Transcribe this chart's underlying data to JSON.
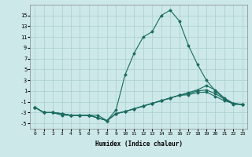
{
  "xlabel": "Humidex (Indice chaleur)",
  "ylabel": "",
  "bg_color": "#cce8e8",
  "line_color": "#1a6b60",
  "grid_color": "#aacfcf",
  "x_values": [
    0,
    1,
    2,
    3,
    4,
    5,
    6,
    7,
    8,
    9,
    10,
    11,
    12,
    13,
    14,
    15,
    16,
    17,
    18,
    19,
    20,
    21,
    22,
    23
  ],
  "series": [
    [
      -2,
      -3,
      -3,
      -3.5,
      -3.5,
      -3.5,
      -3.5,
      -3.5,
      -4.5,
      -2.5,
      4,
      8,
      11,
      12,
      15,
      16,
      14,
      9.5,
      6,
      3,
      1,
      -0.5,
      -1.5,
      -1.5
    ],
    [
      -2,
      -3,
      -3,
      -3.2,
      -3.5,
      -3.5,
      -3.5,
      -4,
      -4.5,
      -3.2,
      -2.8,
      -2.3,
      -1.8,
      -1.3,
      -0.8,
      -0.3,
      0.2,
      0.7,
      1.2,
      2.0,
      1.2,
      -0.3,
      -1.3,
      -1.5
    ],
    [
      -2,
      -3,
      -3,
      -3.2,
      -3.5,
      -3.5,
      -3.5,
      -4,
      -4.5,
      -3.2,
      -2.8,
      -2.3,
      -1.8,
      -1.3,
      -0.8,
      -0.3,
      0.2,
      0.5,
      1.0,
      1.2,
      0.5,
      -0.5,
      -1.3,
      -1.5
    ],
    [
      -2,
      -3,
      -3,
      -3.2,
      -3.5,
      -3.5,
      -3.5,
      -4,
      -4.5,
      -3.2,
      -2.8,
      -2.3,
      -1.8,
      -1.3,
      -0.8,
      -0.3,
      0.2,
      0.3,
      0.7,
      0.8,
      0.0,
      -0.8,
      -1.3,
      -1.5
    ]
  ],
  "ylim": [
    -6,
    17
  ],
  "xlim": [
    -0.5,
    23.5
  ],
  "yticks": [
    -5,
    -3,
    -1,
    1,
    3,
    5,
    7,
    9,
    11,
    13,
    15
  ],
  "xticks": [
    0,
    1,
    2,
    3,
    4,
    5,
    6,
    7,
    8,
    9,
    10,
    11,
    12,
    13,
    14,
    15,
    16,
    17,
    18,
    19,
    20,
    21,
    22,
    23
  ],
  "marker": "D",
  "marker_size": 1.5,
  "line_width": 0.8
}
